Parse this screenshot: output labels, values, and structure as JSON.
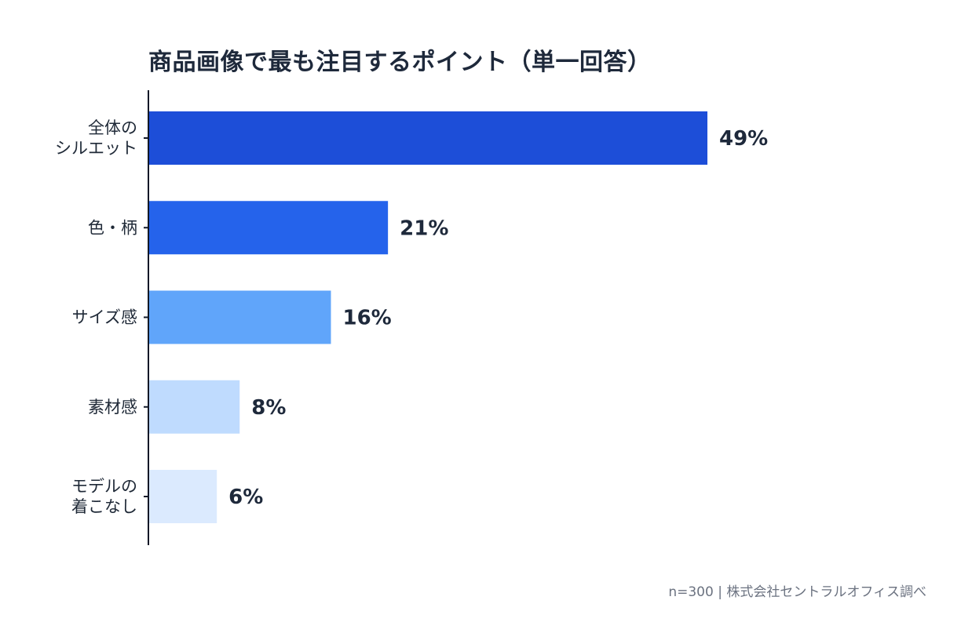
{
  "chart_data": {
    "type": "bar",
    "orientation": "horizontal",
    "title": "商品画像で最も注目するポイント（単一回答）",
    "categories": [
      [
        "全体の",
        "シルエット"
      ],
      [
        "色・柄"
      ],
      [
        "サイズ感"
      ],
      [
        "素材感"
      ],
      [
        "モデルの",
        "着こなし"
      ]
    ],
    "values": [
      49,
      21,
      16,
      8,
      6
    ],
    "value_labels": [
      "49%",
      "21%",
      "16%",
      "8%",
      "6%"
    ],
    "bar_colors": [
      "#1d4ed8",
      "#2563eb",
      "#60a5fa",
      "#bfdbfe",
      "#dbeafe"
    ],
    "xlabel": "",
    "ylabel": "",
    "xlim": [
      0,
      100
    ],
    "grid": false,
    "legend": "none"
  },
  "footer": {
    "source": "n=300 | 株式会社セントラルオフィス調べ"
  },
  "colors": {
    "title": "#1e293b",
    "axis": "#111827",
    "label": "#1f2937",
    "source": "#6b7280"
  }
}
